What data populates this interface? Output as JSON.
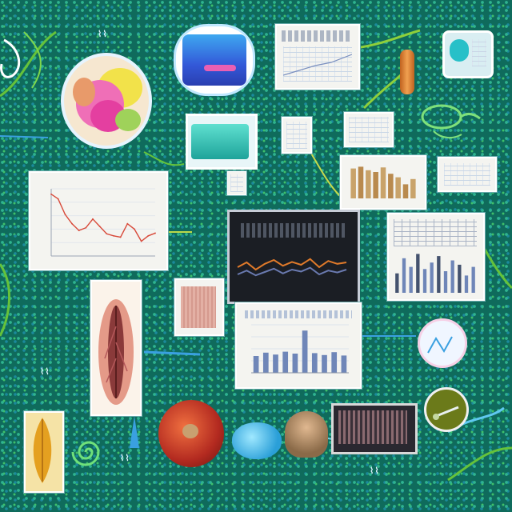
{
  "scene": {
    "background_colors": [
      "#0f6b5c",
      "#2fb38f",
      "#1b8a9c",
      "#3ec06a"
    ],
    "accent_colors": {
      "line_red": "#d84a3a",
      "line_orange": "#e07a2a",
      "bar_blue": "#6f86b8",
      "bar_tan": "#c9a36a",
      "vine_green": "#66c23a",
      "cable_blue": "#3aa0e0"
    }
  },
  "panels": {
    "top_center_sheet": {
      "caption": "",
      "lines": 6
    },
    "right_table_sheet": {
      "caption": "",
      "rows": 6
    },
    "monitor": {
      "header": "",
      "footer": ""
    },
    "center_bar_sheet": {
      "caption": ""
    },
    "line_plot_sheet": {
      "caption": ""
    }
  },
  "chart_data": [
    {
      "type": "line",
      "title": "",
      "xlabel": "",
      "ylabel": "",
      "x": [
        0,
        1,
        2,
        3,
        4,
        5,
        6,
        7,
        8,
        9,
        10,
        11,
        12,
        13,
        14,
        15
      ],
      "series": [
        {
          "values": [
            0.92,
            0.85,
            0.62,
            0.48,
            0.38,
            0.42,
            0.55,
            0.44,
            0.33,
            0.3,
            0.28,
            0.48,
            0.4,
            0.22,
            0.3,
            0.34
          ]
        }
      ],
      "ylim": [
        0,
        1
      ]
    },
    {
      "type": "bar",
      "title": "",
      "categories": [
        "",
        "",
        "",
        "",
        "",
        "",
        "",
        "",
        "",
        ""
      ],
      "values": [
        0.35,
        0.42,
        0.38,
        0.44,
        0.4,
        0.88,
        0.41,
        0.37,
        0.43,
        0.36
      ],
      "ylim": [
        0,
        1
      ]
    },
    {
      "type": "line",
      "title": "",
      "x": [
        0,
        1,
        2,
        3,
        4,
        5,
        6,
        7,
        8,
        9,
        10,
        11,
        12
      ],
      "series": [
        {
          "values": [
            0.45,
            0.55,
            0.4,
            0.52,
            0.6,
            0.48,
            0.56,
            0.5,
            0.62,
            0.45,
            0.58,
            0.52,
            0.55
          ]
        },
        {
          "values": [
            0.3,
            0.38,
            0.28,
            0.35,
            0.42,
            0.32,
            0.4,
            0.36,
            0.44,
            0.3,
            0.38,
            0.34,
            0.4
          ]
        }
      ],
      "ylim": [
        0,
        1
      ]
    },
    {
      "type": "bar",
      "title": "",
      "categories": [
        "",
        "",
        "",
        "",
        "",
        "",
        "",
        "",
        "",
        "",
        "",
        ""
      ],
      "values": [
        0.45,
        0.8,
        0.6,
        0.9,
        0.55,
        0.7,
        0.85,
        0.5,
        0.75,
        0.65,
        0.4,
        0.6
      ],
      "ylim": [
        0,
        1
      ]
    },
    {
      "type": "bar",
      "title": "",
      "categories": [
        "",
        "",
        "",
        "",
        "",
        "",
        "",
        "",
        ""
      ],
      "values": [
        0.85,
        0.9,
        0.8,
        0.75,
        0.88,
        0.7,
        0.6,
        0.4,
        0.55
      ],
      "ylim": [
        0,
        1
      ]
    }
  ]
}
